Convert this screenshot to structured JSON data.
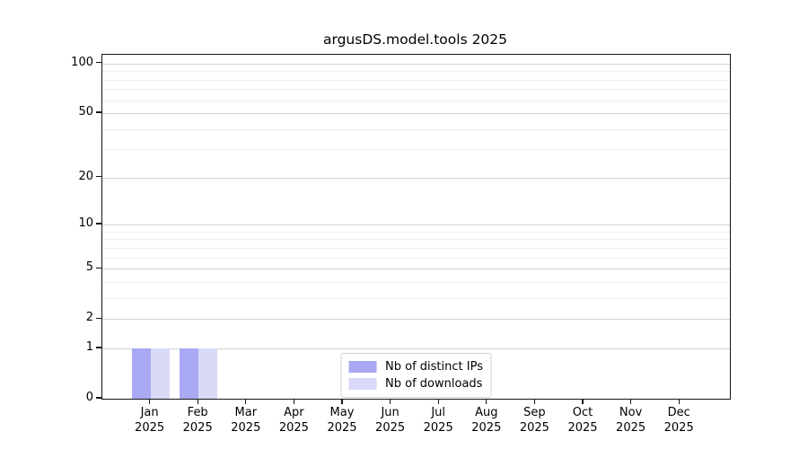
{
  "chart_data": {
    "type": "bar",
    "title": "argusDS.model.tools 2025",
    "x_categories": [
      "Jan",
      "Feb",
      "Mar",
      "Apr",
      "May",
      "Jun",
      "Jul",
      "Aug",
      "Sep",
      "Oct",
      "Nov",
      "Dec"
    ],
    "x_sublabel": "2025",
    "series": [
      {
        "name": "Nb of distinct IPs",
        "color": "#a9a9f3",
        "values": [
          1,
          1,
          0,
          0,
          0,
          0,
          0,
          0,
          0,
          0,
          0,
          0
        ]
      },
      {
        "name": "Nb of downloads",
        "color": "#d9d9f8",
        "values": [
          1,
          1,
          0,
          0,
          0,
          0,
          0,
          0,
          0,
          0,
          0,
          0
        ]
      }
    ],
    "yscale": "log1p",
    "ylim": [
      0,
      113
    ],
    "y_major_ticks": [
      0,
      1,
      2,
      5,
      10,
      20,
      50,
      100
    ],
    "y_minor_gridlines": [
      3,
      4,
      6,
      7,
      8,
      9,
      30,
      40,
      60,
      70,
      80,
      90
    ],
    "grid": "horizontal",
    "xlabel": "",
    "ylabel": "",
    "legend_position": "lower center"
  },
  "style": {
    "background": "#ffffff",
    "bar_color_distinct_ips": "#a9a9f3",
    "bar_color_downloads": "#d9d9f8",
    "grid_major_color": "#d2d2d2",
    "grid_minor_color": "#ededed",
    "spine_color": "#151515",
    "text_color": "#000000"
  }
}
